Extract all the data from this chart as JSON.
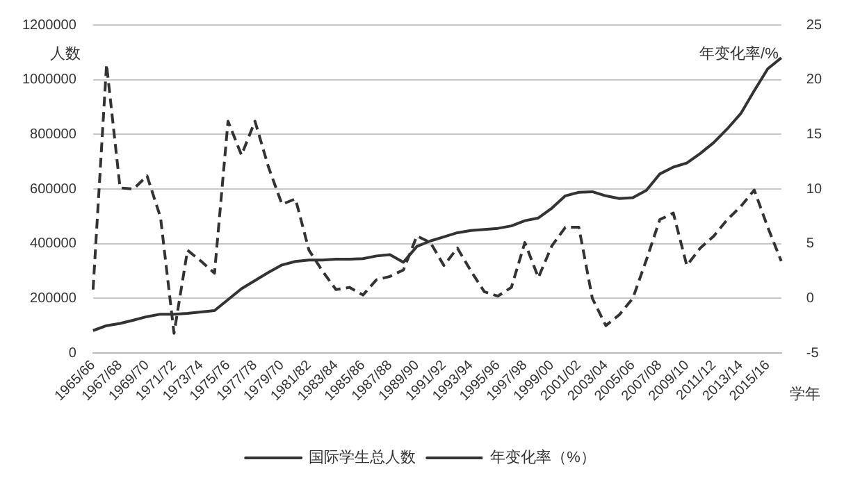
{
  "chart_data": {
    "type": "line",
    "xlabel": "学年",
    "ylabel": "人数",
    "y2label": "年变化率/%",
    "categories": [
      "1965/66",
      null,
      "1967/68",
      null,
      "1969/70",
      null,
      "1971/72",
      null,
      "1973/74",
      null,
      "1975/76",
      null,
      "1977/78",
      null,
      "1979/70",
      null,
      "1981/82",
      null,
      "1983/84",
      null,
      "1985/86",
      null,
      "1987/88",
      null,
      "1989/90",
      null,
      "1991/92",
      null,
      "1993/94",
      null,
      "1995/96",
      null,
      "1997/98",
      null,
      "1999/00",
      null,
      "2001/02",
      null,
      "2003/04",
      null,
      "2005/06",
      null,
      "2007/08",
      null,
      "2009/10",
      null,
      "2011/12",
      null,
      "2013/14",
      null,
      "2015/16",
      null
    ],
    "series": [
      {
        "name": "国际学生总人数",
        "color": "#333333",
        "line_style": "solid",
        "values": [
          82000,
          100000,
          108000,
          120000,
          133000,
          142000,
          142000,
          145000,
          150000,
          155000,
          195000,
          235000,
          265000,
          295000,
          322000,
          335000,
          340000,
          340000,
          343000,
          343000,
          345000,
          355000,
          360000,
          332000,
          390000,
          410000,
          425000,
          440000,
          448000,
          452000,
          456000,
          465000,
          484000,
          494000,
          530000,
          575000,
          588000,
          590000,
          575000,
          565000,
          568000,
          595000,
          655000,
          680000,
          695000,
          730000,
          770000,
          820000,
          876000,
          960000,
          1040000,
          1080000
        ]
      },
      {
        "name": "年变化率（%）",
        "color": "#333333",
        "line_style": "dashed",
        "axis": "y2",
        "values": [
          0.8,
          21.4,
          10.1,
          10.0,
          11.2,
          7.4,
          -3.2,
          4.4,
          3.4,
          2.3,
          16.2,
          13.1,
          16.2,
          12.0,
          8.6,
          9.1,
          4.4,
          2.5,
          0.8,
          1.0,
          0.3,
          1.7,
          2.0,
          2.6,
          5.7,
          5.1,
          3.0,
          4.6,
          2.5,
          0.6,
          0.2,
          1.0,
          5.1,
          1.9,
          4.8,
          6.5,
          6.5,
          0.0,
          -2.5,
          -1.5,
          0.0,
          3.5,
          7.2,
          7.8,
          3.0,
          4.6,
          5.7,
          7.2,
          8.4,
          9.9,
          6.5,
          3.4
        ]
      }
    ],
    "ylim": [
      0,
      1200000
    ],
    "yticks": [
      0,
      200000,
      400000,
      600000,
      800000,
      1000000,
      1200000
    ],
    "y2lim": [
      -5,
      25
    ],
    "y2ticks": [
      -5,
      0,
      5,
      10,
      15,
      20,
      25
    ],
    "grid": "y",
    "legend": "bottom",
    "marker": "none"
  }
}
